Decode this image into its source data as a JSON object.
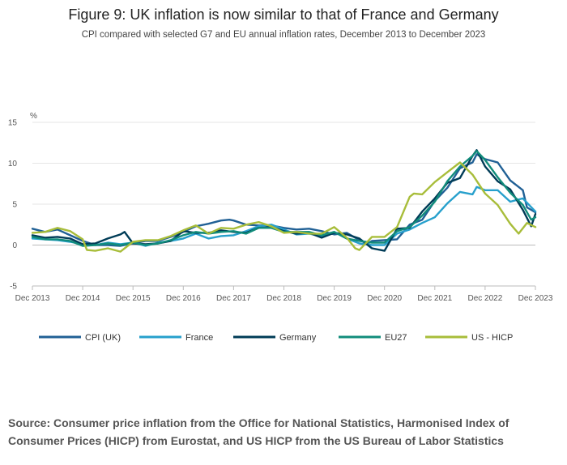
{
  "title": "Figure 9: UK inflation is now similar to that of France and Germany",
  "subtitle": "CPI compared with selected G7 and EU annual inflation rates, December 2013 to December 2023",
  "source": "Source: Consumer price inflation from the Office for National Statistics, Harmonised Index of Consumer Prices (HICP) from Eurostat, and US HICP from the US Bureau of Labor Statistics",
  "chart_data": {
    "type": "line",
    "title": "Figure 9: UK inflation is now similar to that of France and Germany",
    "subtitle": "CPI compared with selected G7 and EU annual inflation rates, December 2013 to December 2023",
    "xlabel": "",
    "ylabel": "%",
    "ylim": [
      -5,
      15
    ],
    "yticks": [
      -5,
      0,
      5,
      10,
      15
    ],
    "xlim": [
      "2013-12",
      "2023-12"
    ],
    "xticks": [
      "Dec 2013",
      "Dec 2014",
      "Dec 2015",
      "Dec 2016",
      "Dec 2017",
      "Dec 2018",
      "Dec 2019",
      "Dec 2020",
      "Dec 2021",
      "Dec 2022",
      "Dec 2023"
    ],
    "grid": true,
    "legend_position": "bottom",
    "series": [
      {
        "name": "CPI (UK)",
        "color": "#206095",
        "points": [
          [
            "2013-12",
            2.0
          ],
          [
            "2014-03",
            1.6
          ],
          [
            "2014-06",
            1.9
          ],
          [
            "2014-09",
            1.2
          ],
          [
            "2014-12",
            0.5
          ],
          [
            "2015-03",
            0.0
          ],
          [
            "2015-06",
            0.0
          ],
          [
            "2015-09",
            -0.1
          ],
          [
            "2015-12",
            0.2
          ],
          [
            "2016-03",
            0.5
          ],
          [
            "2016-06",
            0.5
          ],
          [
            "2016-09",
            1.0
          ],
          [
            "2016-12",
            1.6
          ],
          [
            "2017-03",
            2.3
          ],
          [
            "2017-06",
            2.6
          ],
          [
            "2017-09",
            3.0
          ],
          [
            "2017-11",
            3.1
          ],
          [
            "2017-12",
            3.0
          ],
          [
            "2018-03",
            2.5
          ],
          [
            "2018-06",
            2.4
          ],
          [
            "2018-09",
            2.4
          ],
          [
            "2018-12",
            2.1
          ],
          [
            "2019-03",
            1.9
          ],
          [
            "2019-06",
            2.0
          ],
          [
            "2019-09",
            1.7
          ],
          [
            "2019-12",
            1.3
          ],
          [
            "2020-03",
            1.5
          ],
          [
            "2020-06",
            0.6
          ],
          [
            "2020-08",
            0.2
          ],
          [
            "2020-09",
            0.5
          ],
          [
            "2020-12",
            0.6
          ],
          [
            "2021-03",
            0.7
          ],
          [
            "2021-06",
            2.5
          ],
          [
            "2021-09",
            3.1
          ],
          [
            "2021-12",
            5.4
          ],
          [
            "2022-03",
            7.0
          ],
          [
            "2022-06",
            9.4
          ],
          [
            "2022-09",
            10.1
          ],
          [
            "2022-10",
            11.1
          ],
          [
            "2022-12",
            10.5
          ],
          [
            "2023-03",
            10.1
          ],
          [
            "2023-06",
            7.9
          ],
          [
            "2023-09",
            6.7
          ],
          [
            "2023-10",
            4.6
          ],
          [
            "2023-12",
            4.0
          ]
        ]
      },
      {
        "name": "France",
        "color": "#27A0CC",
        "points": [
          [
            "2013-12",
            0.8
          ],
          [
            "2014-03",
            0.7
          ],
          [
            "2014-06",
            0.6
          ],
          [
            "2014-09",
            0.4
          ],
          [
            "2014-12",
            0.1
          ],
          [
            "2015-03",
            0.0
          ],
          [
            "2015-06",
            0.3
          ],
          [
            "2015-09",
            0.1
          ],
          [
            "2015-12",
            0.3
          ],
          [
            "2016-03",
            -0.1
          ],
          [
            "2016-06",
            0.3
          ],
          [
            "2016-09",
            0.5
          ],
          [
            "2016-12",
            0.8
          ],
          [
            "2017-03",
            1.4
          ],
          [
            "2017-06",
            0.8
          ],
          [
            "2017-09",
            1.1
          ],
          [
            "2017-12",
            1.2
          ],
          [
            "2018-03",
            1.7
          ],
          [
            "2018-06",
            2.3
          ],
          [
            "2018-09",
            2.5
          ],
          [
            "2018-12",
            1.9
          ],
          [
            "2019-03",
            1.3
          ],
          [
            "2019-06",
            1.4
          ],
          [
            "2019-09",
            1.1
          ],
          [
            "2019-12",
            1.6
          ],
          [
            "2020-03",
            0.8
          ],
          [
            "2020-06",
            0.2
          ],
          [
            "2020-09",
            0.0
          ],
          [
            "2020-12",
            0.0
          ],
          [
            "2021-03",
            1.4
          ],
          [
            "2021-06",
            1.9
          ],
          [
            "2021-09",
            2.7
          ],
          [
            "2021-12",
            3.4
          ],
          [
            "2022-03",
            5.1
          ],
          [
            "2022-06",
            6.5
          ],
          [
            "2022-09",
            6.2
          ],
          [
            "2022-10",
            7.1
          ],
          [
            "2022-12",
            6.7
          ],
          [
            "2023-03",
            6.7
          ],
          [
            "2023-06",
            5.3
          ],
          [
            "2023-09",
            5.7
          ],
          [
            "2023-12",
            4.1
          ]
        ]
      },
      {
        "name": "Germany",
        "color": "#003C57",
        "points": [
          [
            "2013-12",
            1.2
          ],
          [
            "2014-03",
            0.9
          ],
          [
            "2014-06",
            1.0
          ],
          [
            "2014-09",
            0.8
          ],
          [
            "2014-12",
            0.1
          ],
          [
            "2015-03",
            0.2
          ],
          [
            "2015-06",
            0.8
          ],
          [
            "2015-09",
            1.3
          ],
          [
            "2015-10",
            1.6
          ],
          [
            "2015-12",
            0.2
          ],
          [
            "2016-03",
            0.1
          ],
          [
            "2016-06",
            0.2
          ],
          [
            "2016-09",
            0.5
          ],
          [
            "2016-12",
            1.7
          ],
          [
            "2017-03",
            1.5
          ],
          [
            "2017-06",
            1.5
          ],
          [
            "2017-09",
            1.8
          ],
          [
            "2017-12",
            1.6
          ],
          [
            "2018-03",
            1.5
          ],
          [
            "2018-06",
            2.1
          ],
          [
            "2018-09",
            2.2
          ],
          [
            "2018-12",
            1.7
          ],
          [
            "2019-03",
            1.4
          ],
          [
            "2019-06",
            1.5
          ],
          [
            "2019-09",
            0.9
          ],
          [
            "2019-12",
            1.5
          ],
          [
            "2020-03",
            1.3
          ],
          [
            "2020-06",
            0.8
          ],
          [
            "2020-09",
            -0.4
          ],
          [
            "2020-12",
            -0.7
          ],
          [
            "2021-03",
            2.0
          ],
          [
            "2021-06",
            2.1
          ],
          [
            "2021-09",
            4.1
          ],
          [
            "2021-12",
            5.7
          ],
          [
            "2022-03",
            7.6
          ],
          [
            "2022-06",
            8.2
          ],
          [
            "2022-09",
            10.9
          ],
          [
            "2022-10",
            11.6
          ],
          [
            "2022-12",
            9.6
          ],
          [
            "2023-03",
            7.8
          ],
          [
            "2023-06",
            6.8
          ],
          [
            "2023-09",
            4.3
          ],
          [
            "2023-11",
            2.3
          ],
          [
            "2023-12",
            3.8
          ]
        ]
      },
      {
        "name": "EU27",
        "color": "#118C7B",
        "points": [
          [
            "2013-12",
            1.0
          ],
          [
            "2014-03",
            0.7
          ],
          [
            "2014-06",
            0.7
          ],
          [
            "2014-09",
            0.5
          ],
          [
            "2014-12",
            -0.1
          ],
          [
            "2015-03",
            0.0
          ],
          [
            "2015-06",
            0.2
          ],
          [
            "2015-09",
            0.0
          ],
          [
            "2015-12",
            0.3
          ],
          [
            "2016-03",
            0.0
          ],
          [
            "2016-06",
            0.2
          ],
          [
            "2016-09",
            0.6
          ],
          [
            "2016-12",
            1.2
          ],
          [
            "2017-03",
            1.6
          ],
          [
            "2017-06",
            1.4
          ],
          [
            "2017-09",
            1.6
          ],
          [
            "2017-12",
            1.7
          ],
          [
            "2018-03",
            1.4
          ],
          [
            "2018-06",
            2.1
          ],
          [
            "2018-09",
            2.1
          ],
          [
            "2018-12",
            1.6
          ],
          [
            "2019-03",
            1.6
          ],
          [
            "2019-06",
            1.6
          ],
          [
            "2019-09",
            1.2
          ],
          [
            "2019-12",
            1.6
          ],
          [
            "2020-03",
            0.8
          ],
          [
            "2020-06",
            0.5
          ],
          [
            "2020-09",
            0.3
          ],
          [
            "2020-12",
            0.3
          ],
          [
            "2021-03",
            1.7
          ],
          [
            "2021-06",
            2.2
          ],
          [
            "2021-09",
            3.6
          ],
          [
            "2021-12",
            5.3
          ],
          [
            "2022-03",
            7.8
          ],
          [
            "2022-06",
            9.6
          ],
          [
            "2022-09",
            10.9
          ],
          [
            "2022-10",
            11.5
          ],
          [
            "2022-12",
            10.4
          ],
          [
            "2023-03",
            8.3
          ],
          [
            "2023-06",
            6.4
          ],
          [
            "2023-09",
            4.9
          ],
          [
            "2023-11",
            3.1
          ],
          [
            "2023-12",
            3.4
          ]
        ]
      },
      {
        "name": "US - HICP",
        "color": "#A8BD3A",
        "points": [
          [
            "2013-12",
            1.5
          ],
          [
            "2014-03",
            1.6
          ],
          [
            "2014-06",
            2.1
          ],
          [
            "2014-09",
            1.7
          ],
          [
            "2014-12",
            0.7
          ],
          [
            "2015-01",
            -0.6
          ],
          [
            "2015-03",
            -0.7
          ],
          [
            "2015-06",
            -0.4
          ],
          [
            "2015-09",
            -0.8
          ],
          [
            "2015-12",
            0.4
          ],
          [
            "2016-03",
            0.6
          ],
          [
            "2016-06",
            0.6
          ],
          [
            "2016-09",
            1.1
          ],
          [
            "2016-12",
            1.8
          ],
          [
            "2017-03",
            2.4
          ],
          [
            "2017-06",
            1.4
          ],
          [
            "2017-09",
            2.1
          ],
          [
            "2017-12",
            2.0
          ],
          [
            "2018-03",
            2.5
          ],
          [
            "2018-06",
            2.8
          ],
          [
            "2018-09",
            2.3
          ],
          [
            "2018-12",
            1.5
          ],
          [
            "2019-03",
            1.6
          ],
          [
            "2019-06",
            1.4
          ],
          [
            "2019-09",
            1.4
          ],
          [
            "2019-12",
            2.2
          ],
          [
            "2020-03",
            0.9
          ],
          [
            "2020-05",
            -0.4
          ],
          [
            "2020-06",
            -0.6
          ],
          [
            "2020-09",
            1.0
          ],
          [
            "2020-12",
            1.0
          ],
          [
            "2021-03",
            2.2
          ],
          [
            "2021-06",
            5.9
          ],
          [
            "2021-07",
            6.3
          ],
          [
            "2021-09",
            6.2
          ],
          [
            "2021-12",
            7.7
          ],
          [
            "2022-03",
            8.9
          ],
          [
            "2022-06",
            10.1
          ],
          [
            "2022-09",
            8.6
          ],
          [
            "2022-12",
            6.3
          ],
          [
            "2023-03",
            4.9
          ],
          [
            "2023-06",
            2.6
          ],
          [
            "2023-08",
            1.4
          ],
          [
            "2023-10",
            2.7
          ],
          [
            "2023-12",
            2.2
          ]
        ]
      }
    ]
  }
}
